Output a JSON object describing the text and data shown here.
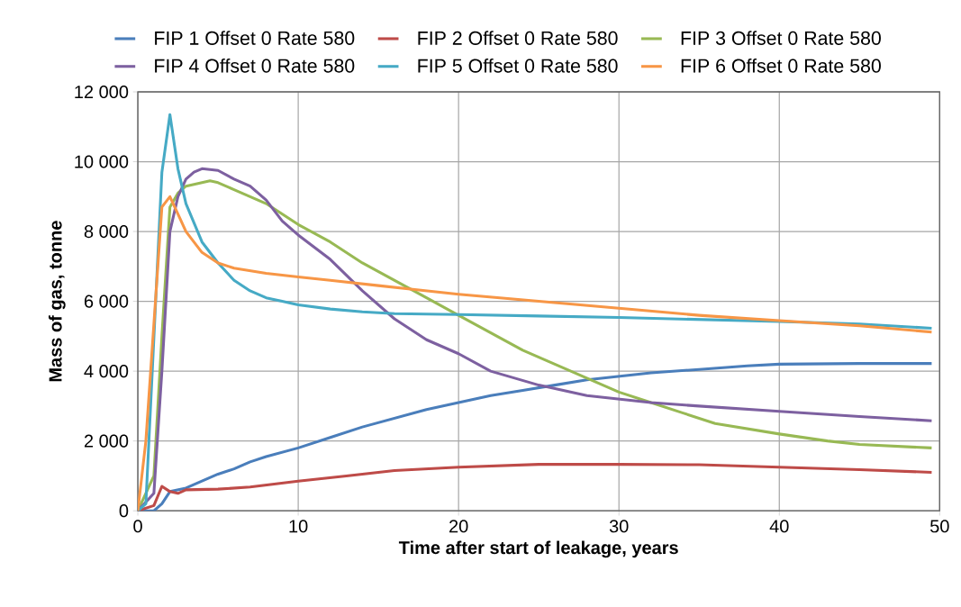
{
  "chart_data": {
    "type": "line",
    "xlabel": "Time after start of leakage, years",
    "ylabel": "Mass of gas, tonne",
    "xlim": [
      0,
      50
    ],
    "ylim": [
      0,
      12000
    ],
    "xticks": [
      0,
      10,
      20,
      30,
      40,
      50
    ],
    "yticks": [
      0,
      {
        "value": 2000,
        "label": "2 000"
      },
      {
        "value": 4000,
        "label": "4 000"
      },
      {
        "value": 6000,
        "label": "6 000"
      },
      {
        "value": 8000,
        "label": "8 000"
      },
      {
        "value": 10000,
        "label": "10 000"
      },
      {
        "value": 12000,
        "label": "12 000"
      }
    ],
    "grid": true,
    "legend": "top",
    "marker": "none",
    "line_style": "solid",
    "series": [
      {
        "name": "FIP 1 Offset 0 Rate 580",
        "color": "#4a7ebb",
        "x": [
          0,
          1,
          1.5,
          2,
          3,
          4,
          5,
          6,
          7,
          8,
          10,
          12,
          14,
          16,
          18,
          20,
          22,
          24,
          26,
          28,
          30,
          32,
          35,
          38,
          40,
          45,
          49.5
        ],
        "values": [
          0,
          0,
          200,
          550,
          650,
          850,
          1050,
          1200,
          1400,
          1550,
          1800,
          2100,
          2400,
          2650,
          2900,
          3100,
          3300,
          3450,
          3600,
          3750,
          3850,
          3950,
          4050,
          4150,
          4200,
          4220,
          4220
        ]
      },
      {
        "name": "FIP 2 Offset 0 Rate 580",
        "color": "#be4b48",
        "x": [
          0,
          1,
          1.5,
          2,
          2.5,
          3,
          5,
          7,
          10,
          13,
          16,
          20,
          25,
          30,
          35,
          40,
          45,
          49.5
        ],
        "values": [
          0,
          150,
          700,
          550,
          500,
          600,
          620,
          680,
          850,
          1000,
          1150,
          1250,
          1330,
          1330,
          1320,
          1250,
          1180,
          1100
        ]
      },
      {
        "name": "FIP 3 Offset 0 Rate 580",
        "color": "#98b954",
        "x": [
          0,
          1,
          1.5,
          2,
          2.5,
          3,
          4,
          4.5,
          5,
          6,
          7,
          8,
          10,
          12,
          14,
          16,
          18,
          20,
          22,
          24,
          26,
          28,
          30,
          32,
          34,
          36,
          40,
          43,
          45,
          49.5
        ],
        "values": [
          0,
          1000,
          5000,
          8700,
          9100,
          9300,
          9400,
          9450,
          9400,
          9200,
          9000,
          8800,
          8200,
          7700,
          7100,
          6600,
          6100,
          5600,
          5100,
          4600,
          4200,
          3800,
          3400,
          3100,
          2800,
          2500,
          2200,
          2000,
          1900,
          1800
        ]
      },
      {
        "name": "FIP 4 Offset 0 Rate 580",
        "color": "#7d60a0",
        "x": [
          0,
          1,
          1.5,
          2,
          2.5,
          3,
          3.5,
          4,
          5,
          6,
          7,
          8,
          9,
          10,
          12,
          14,
          16,
          18,
          20,
          22,
          25,
          28,
          30,
          32,
          35,
          40,
          45,
          49.5
        ],
        "values": [
          0,
          500,
          4000,
          8000,
          9000,
          9500,
          9700,
          9800,
          9750,
          9500,
          9300,
          8900,
          8300,
          7900,
          7200,
          6300,
          5500,
          4900,
          4500,
          4000,
          3600,
          3300,
          3200,
          3100,
          3000,
          2850,
          2700,
          2580
        ]
      },
      {
        "name": "FIP 5 Offset 0 Rate 580",
        "color": "#46aac5",
        "x": [
          0,
          0.5,
          1.5,
          2,
          2.5,
          3,
          4,
          5,
          6,
          7,
          8,
          9,
          10,
          12,
          14,
          16,
          20,
          25,
          30,
          35,
          40,
          45,
          49.5
        ],
        "values": [
          0,
          200,
          9700,
          11350,
          9800,
          8800,
          7700,
          7100,
          6600,
          6300,
          6100,
          6000,
          5900,
          5780,
          5700,
          5650,
          5620,
          5580,
          5540,
          5480,
          5420,
          5350,
          5230
        ]
      },
      {
        "name": "FIP 6 Offset 0 Rate 580",
        "color": "#f79646",
        "x": [
          0,
          0.5,
          1.5,
          2,
          2.5,
          3,
          4,
          5,
          6,
          8,
          10,
          12,
          15,
          17,
          20,
          25,
          30,
          35,
          40,
          45,
          49.5
        ],
        "values": [
          0,
          2000,
          8700,
          9000,
          8500,
          8000,
          7400,
          7100,
          6950,
          6800,
          6700,
          6600,
          6450,
          6350,
          6200,
          6000,
          5800,
          5600,
          5450,
          5300,
          5120
        ]
      }
    ]
  }
}
